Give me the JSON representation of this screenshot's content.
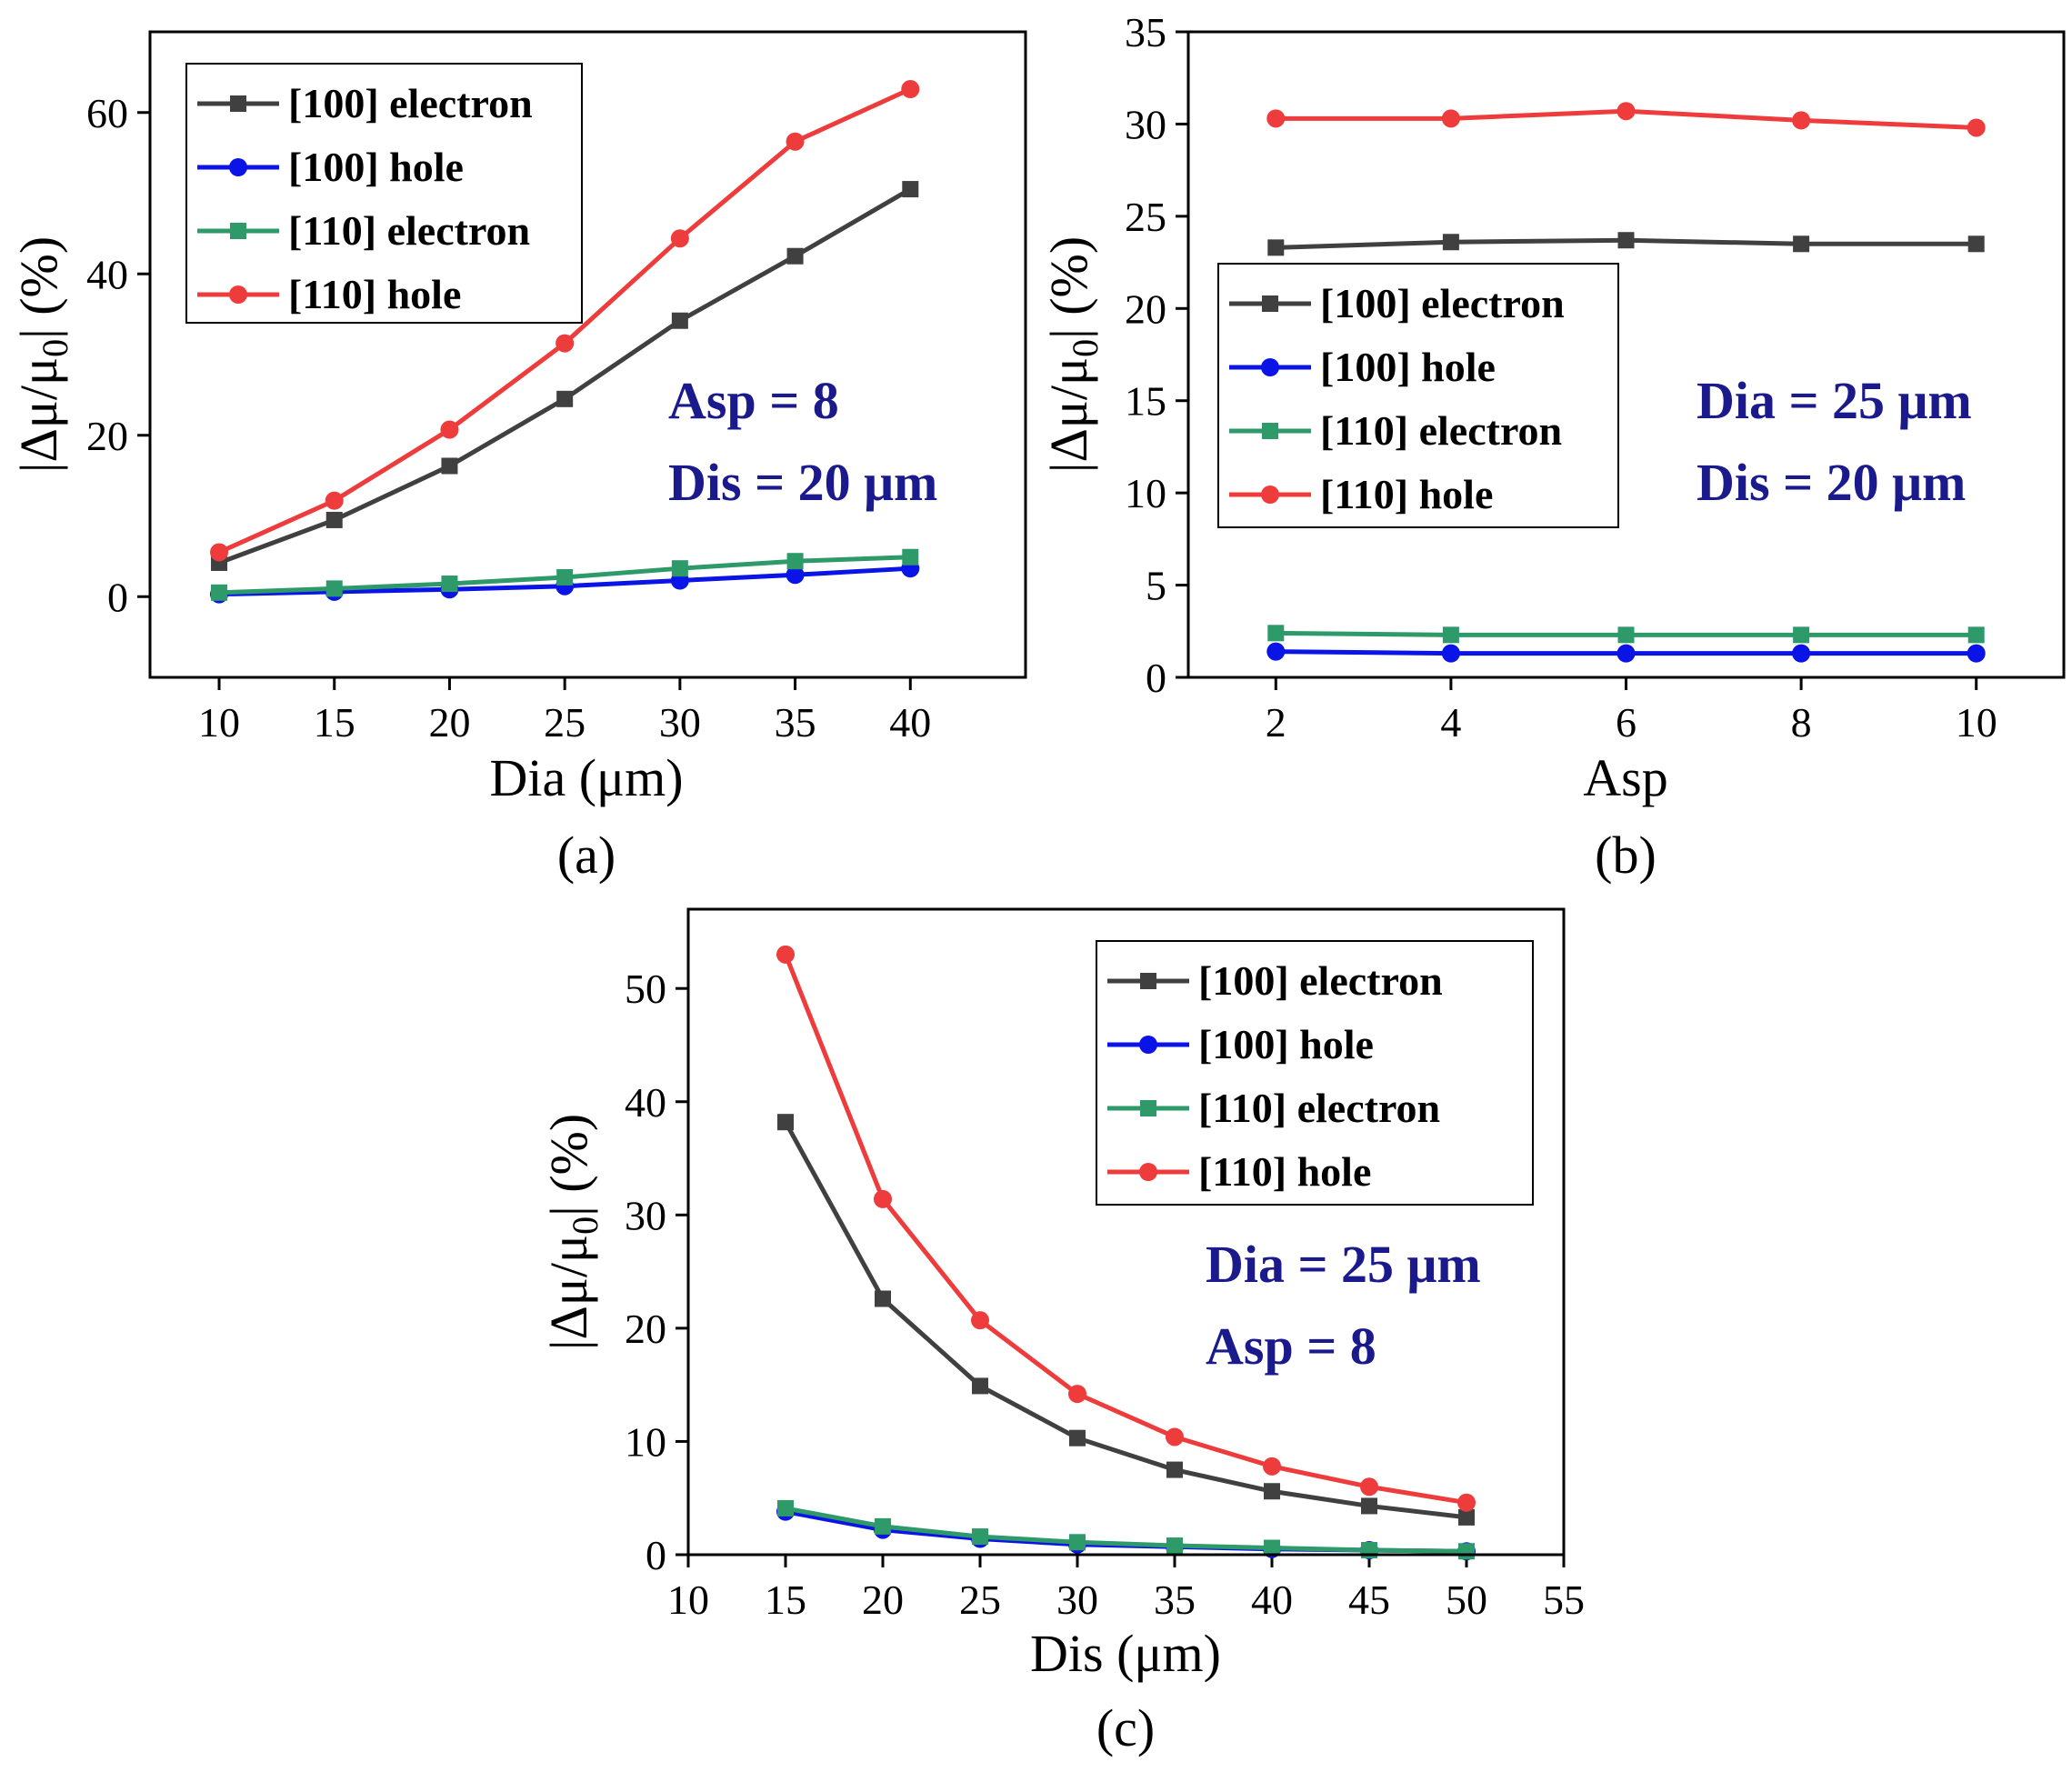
{
  "chart_data": [
    {
      "type": "line",
      "panel_label": "(a)",
      "xlabel": "Dia (μm)",
      "ylabel_parts": [
        "|Δμ/μ",
        "0",
        "| (%)"
      ],
      "xlim": [
        7,
        45
      ],
      "ylim": [
        -10,
        70
      ],
      "xticks": [
        10,
        15,
        20,
        25,
        30,
        35,
        40
      ],
      "yticks": [
        0,
        20,
        40,
        60
      ],
      "x": [
        10,
        15,
        20,
        25,
        30,
        35,
        40
      ],
      "series": [
        {
          "name": "[100] electron",
          "color": "#404040",
          "marker": "square",
          "values": [
            4.2,
            9.5,
            16.2,
            24.5,
            34.2,
            42.2,
            50.5
          ]
        },
        {
          "name": "[100] hole",
          "color": "#0a14e6",
          "marker": "circle",
          "values": [
            0.3,
            0.6,
            0.9,
            1.3,
            2.0,
            2.7,
            3.5
          ]
        },
        {
          "name": "[110] electron",
          "color": "#2e9a6a",
          "marker": "square",
          "values": [
            0.5,
            1.0,
            1.6,
            2.4,
            3.5,
            4.4,
            4.9
          ]
        },
        {
          "name": "[110] hole",
          "color": "#ee3b3b",
          "marker": "circle",
          "values": [
            5.5,
            11.9,
            20.7,
            31.4,
            44.4,
            56.4,
            62.9
          ]
        }
      ],
      "annotations": [
        "Asp = 8",
        "Dis = 20 μm"
      ],
      "annotation_color": "#1a1a8c",
      "legend_position": "top-left"
    },
    {
      "type": "line",
      "panel_label": "(b)",
      "xlabel": "Asp",
      "ylabel_parts": [
        "|Δμ/μ",
        "0",
        "| (%)"
      ],
      "xlim": [
        1,
        11
      ],
      "ylim": [
        0,
        35
      ],
      "xticks": [
        2,
        4,
        6,
        8,
        10
      ],
      "yticks": [
        0,
        5,
        10,
        15,
        20,
        25,
        30,
        35
      ],
      "x": [
        2,
        4,
        6,
        8,
        10
      ],
      "series": [
        {
          "name": "[100] electron",
          "color": "#404040",
          "marker": "square",
          "values": [
            23.3,
            23.6,
            23.7,
            23.5,
            23.5
          ]
        },
        {
          "name": "[100] hole",
          "color": "#0a14e6",
          "marker": "circle",
          "values": [
            1.4,
            1.3,
            1.3,
            1.3,
            1.3
          ]
        },
        {
          "name": "[110] electron",
          "color": "#2e9a6a",
          "marker": "square",
          "values": [
            2.4,
            2.3,
            2.3,
            2.3,
            2.3
          ]
        },
        {
          "name": "[110] hole",
          "color": "#ee3b3b",
          "marker": "circle",
          "values": [
            30.3,
            30.3,
            30.7,
            30.2,
            29.8
          ]
        }
      ],
      "annotations": [
        "Dia = 25 μm",
        "Dis = 20 μm"
      ],
      "annotation_color": "#1a1a8c",
      "legend_position": "center-left"
    },
    {
      "type": "line",
      "panel_label": "(c)",
      "xlabel": "Dis (μm)",
      "ylabel_parts": [
        "|Δμ/μ",
        "0",
        "| (%)"
      ],
      "xlim": [
        10,
        55
      ],
      "ylim": [
        0,
        57
      ],
      "xticks": [
        10,
        15,
        20,
        25,
        30,
        35,
        40,
        45,
        50,
        55
      ],
      "yticks": [
        0,
        10,
        20,
        30,
        40,
        50
      ],
      "x": [
        15,
        20,
        25,
        30,
        35,
        40,
        45,
        50
      ],
      "series": [
        {
          "name": "[100] electron",
          "color": "#404040",
          "marker": "square",
          "values": [
            38.2,
            22.6,
            14.9,
            10.3,
            7.5,
            5.6,
            4.3,
            3.3
          ]
        },
        {
          "name": "[100] hole",
          "color": "#0a14e6",
          "marker": "circle",
          "values": [
            3.8,
            2.2,
            1.4,
            0.9,
            0.7,
            0.5,
            0.4,
            0.3
          ]
        },
        {
          "name": "[110] electron",
          "color": "#2e9a6a",
          "marker": "square",
          "values": [
            4.1,
            2.5,
            1.6,
            1.1,
            0.8,
            0.6,
            0.4,
            0.3
          ]
        },
        {
          "name": "[110] hole",
          "color": "#ee3b3b",
          "marker": "circle",
          "values": [
            53.0,
            31.4,
            20.7,
            14.2,
            10.4,
            7.8,
            6.0,
            4.6
          ]
        }
      ],
      "annotations": [
        "Dia = 25 μm",
        "Asp = 8"
      ],
      "annotation_color": "#1a1a8c",
      "legend_position": "top-right"
    }
  ]
}
